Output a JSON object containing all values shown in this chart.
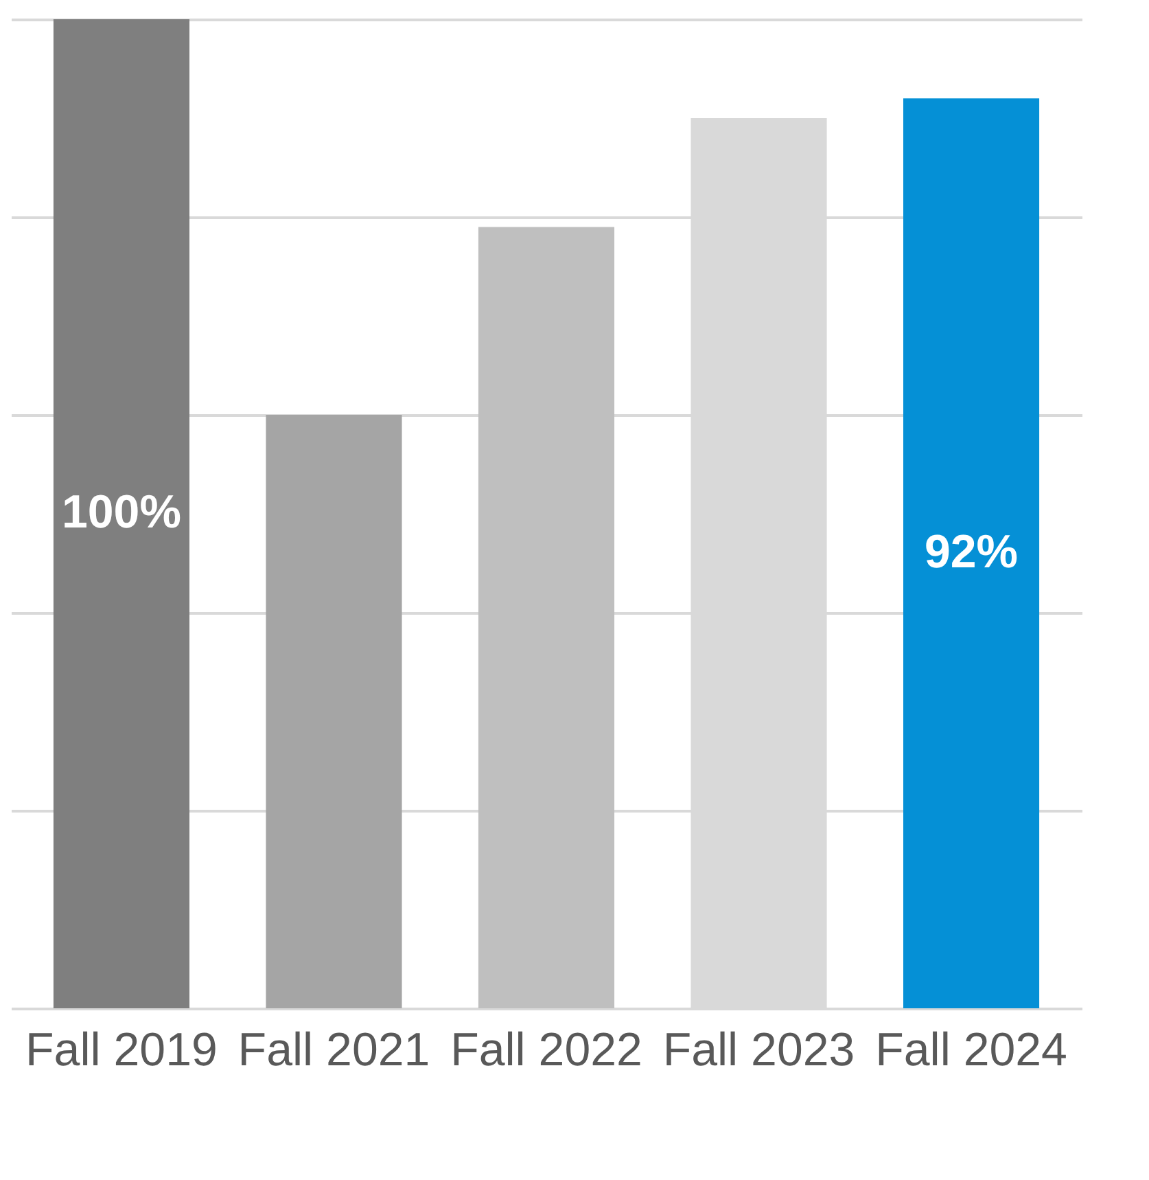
{
  "chart_data": {
    "type": "bar",
    "categories": [
      "Fall 2019",
      "Fall 2021",
      "Fall 2022",
      "Fall 2023",
      "Fall 2024"
    ],
    "values": [
      100,
      60,
      79,
      90,
      92
    ],
    "colors": [
      "#7f7f7f",
      "#a5a5a5",
      "#bfbfbf",
      "#d9d9d9",
      "#0590d6"
    ],
    "value_labels": [
      "100%",
      null,
      null,
      null,
      "92%"
    ],
    "ylim": [
      0,
      100
    ],
    "yticks": [
      {
        "value": 0,
        "label": null
      },
      {
        "value": 20,
        "label": null
      },
      {
        "value": 40,
        "label": null
      },
      {
        "value": 60,
        "label": null
      },
      {
        "value": 80,
        "label": null
      },
      {
        "value": 100,
        "label": null
      }
    ],
    "grid": true,
    "tick_labels": "x"
  }
}
